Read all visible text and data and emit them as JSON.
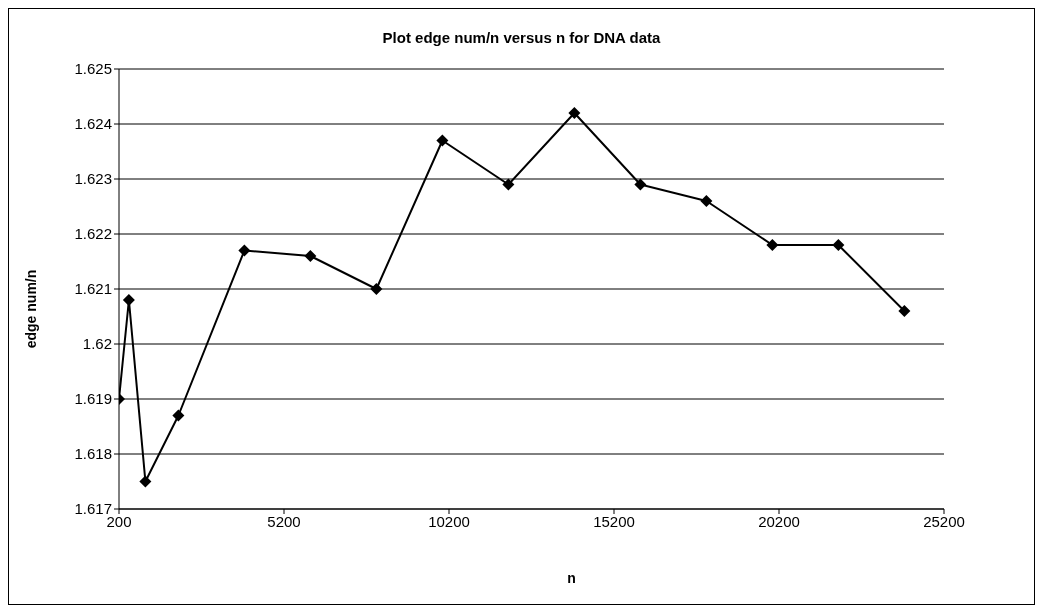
{
  "chart_data": {
    "type": "line",
    "title": "Plot edge num/n versus n for DNA data",
    "xlabel": "n",
    "ylabel": "edge num/n",
    "x": [
      200,
      500,
      1000,
      2000,
      4000,
      6000,
      8000,
      10000,
      12000,
      14000,
      16000,
      18000,
      20000,
      22000,
      24000
    ],
    "series": [
      {
        "color": "#000000",
        "values": [
          1.619,
          1.6208,
          1.6175,
          1.6187,
          1.6217,
          1.6216,
          1.621,
          1.6237,
          1.6229,
          1.6242,
          1.6229,
          1.6226,
          1.6218,
          1.6218,
          1.6206
        ]
      }
    ],
    "xlim": [
      200,
      25200
    ],
    "xticks": [
      200,
      5200,
      10200,
      15200,
      20200,
      25200
    ],
    "ylim": [
      1.617,
      1.625
    ],
    "yticks": [
      1.617,
      1.618,
      1.619,
      1.62,
      1.621,
      1.622,
      1.623,
      1.624,
      1.625
    ],
    "grid": "y",
    "legend": false,
    "marker": "diamond",
    "line_style": "solid"
  }
}
